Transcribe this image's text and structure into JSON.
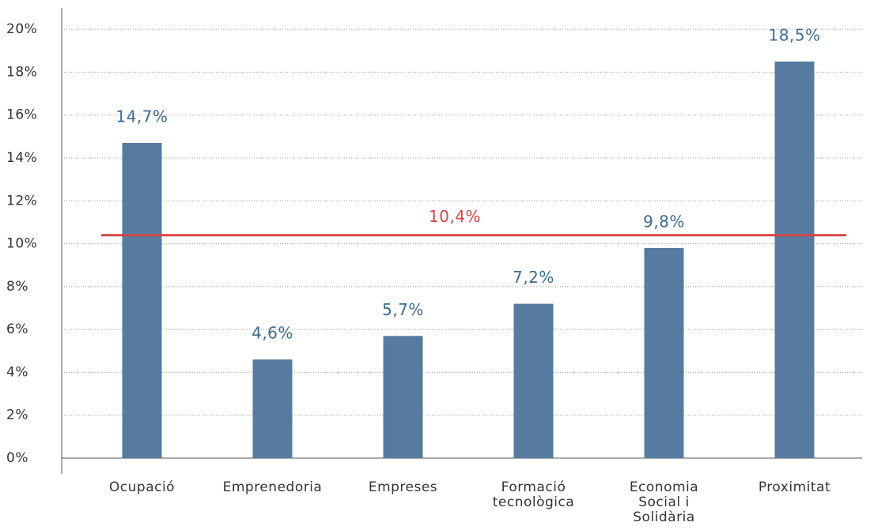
{
  "chart_data": {
    "type": "bar",
    "categories": [
      [
        "Ocupació"
      ],
      [
        "Emprenedoria"
      ],
      [
        "Empreses"
      ],
      [
        "Formació",
        "tecnològica"
      ],
      [
        "Economia",
        "Social i",
        "Solidària"
      ],
      [
        "Proximitat"
      ]
    ],
    "values": [
      14.7,
      4.6,
      5.7,
      7.2,
      9.8,
      18.5
    ],
    "value_labels": [
      "14,7%",
      "4,6%",
      "5,7%",
      "7,2%",
      "9,8%",
      "18,5%"
    ],
    "color": "#577ba0",
    "label_color": "#3d6a90",
    "reference": {
      "value": 10.4,
      "label": "10,4%",
      "color": "#d64545"
    },
    "ylim": [
      0,
      21
    ],
    "yticks": [
      {
        "value": 0,
        "label": "0%"
      },
      {
        "value": 2,
        "label": "2%"
      },
      {
        "value": 4,
        "label": "4%"
      },
      {
        "value": 6,
        "label": "6%"
      },
      {
        "value": 8,
        "label": "8%"
      },
      {
        "value": 10,
        "label": "10%"
      },
      {
        "value": 12,
        "label": "12%"
      },
      {
        "value": 14,
        "label": "14%"
      },
      {
        "value": 16,
        "label": "16%"
      },
      {
        "value": 18,
        "label": "18%"
      },
      {
        "value": 20,
        "label": "20%"
      }
    ],
    "grid": true
  }
}
